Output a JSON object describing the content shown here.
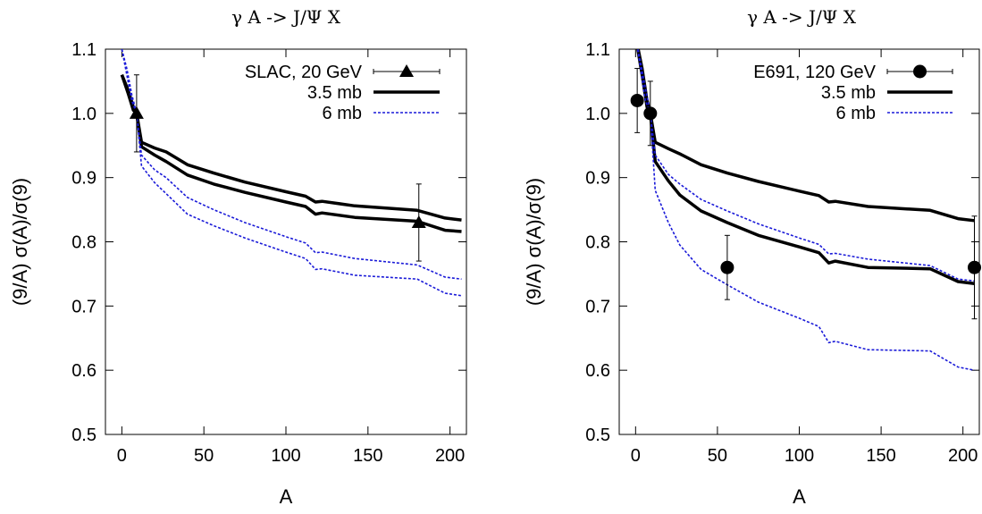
{
  "chart_data": [
    {
      "type": "line",
      "title": "γ A -> J/Ψ X",
      "xlabel": "A",
      "ylabel": "(9/A) σ(A)/σ(9)",
      "xlim": [
        -10,
        210
      ],
      "ylim": [
        0.5,
        1.1
      ],
      "xticks": [
        "0",
        "50",
        "100",
        "150",
        "200"
      ],
      "yticks": [
        "0.5",
        "0.6",
        "0.7",
        "0.8",
        "0.9",
        "1.0",
        "1.1"
      ],
      "legend_position": "top-right",
      "data_series": {
        "name": "SLAC, 20 GeV",
        "marker": "triangle",
        "points": [
          {
            "x": 9,
            "y": 1.0,
            "err_low": 0.94,
            "err_high": 1.06
          },
          {
            "x": 181,
            "y": 0.83,
            "err_low": 0.77,
            "err_high": 0.89
          }
        ]
      },
      "series": [
        {
          "name": "3.5 mb",
          "color": "#000000",
          "style": "solid",
          "curves": [
            {
              "x": [
                0,
                4,
                7,
                9,
                12,
                20,
                27,
                40,
                56,
                75,
                100,
                112,
                118,
                122,
                142,
                180,
                197,
                207
              ],
              "y": [
                1.06,
                1.035,
                1.01,
                1.0,
                0.955,
                0.946,
                0.94,
                0.92,
                0.907,
                0.893,
                0.878,
                0.871,
                0.862,
                0.863,
                0.856,
                0.849,
                0.837,
                0.834
              ]
            },
            {
              "x": [
                0,
                4,
                7,
                9,
                12,
                20,
                27,
                40,
                56,
                75,
                100,
                112,
                118,
                122,
                142,
                180,
                197,
                207
              ],
              "y": [
                1.06,
                1.03,
                1.005,
                1.0,
                0.948,
                0.935,
                0.925,
                0.904,
                0.89,
                0.877,
                0.862,
                0.855,
                0.843,
                0.845,
                0.838,
                0.832,
                0.818,
                0.816
              ]
            }
          ]
        },
        {
          "name": "6 mb",
          "color": "#1a1ad8",
          "style": "dashed",
          "curves": [
            {
              "x": [
                0,
                3,
                6,
                9,
                12,
                20,
                27,
                40,
                56,
                75,
                100,
                112,
                118,
                122,
                142,
                180,
                197,
                207
              ],
              "y": [
                1.1,
                1.07,
                1.03,
                1.0,
                0.935,
                0.912,
                0.9,
                0.869,
                0.85,
                0.83,
                0.808,
                0.798,
                0.783,
                0.784,
                0.774,
                0.764,
                0.745,
                0.742
              ]
            },
            {
              "x": [
                0,
                3,
                6,
                9,
                12,
                20,
                27,
                40,
                56,
                75,
                100,
                112,
                118,
                122,
                142,
                180,
                197,
                207
              ],
              "y": [
                1.1,
                1.06,
                1.02,
                1.0,
                0.918,
                0.892,
                0.875,
                0.843,
                0.825,
                0.806,
                0.784,
                0.774,
                0.757,
                0.758,
                0.748,
                0.742,
                0.72,
                0.716
              ]
            }
          ]
        }
      ]
    },
    {
      "type": "line",
      "title": "γ A -> J/Ψ X",
      "xlabel": "A",
      "ylabel": "(9/A) σ(A)/σ(9)",
      "xlim": [
        -10,
        210
      ],
      "ylim": [
        0.5,
        1.1
      ],
      "xticks": [
        "0",
        "50",
        "100",
        "150",
        "200"
      ],
      "yticks": [
        "0.5",
        "0.6",
        "0.7",
        "0.8",
        "0.9",
        "1.0",
        "1.1"
      ],
      "legend_position": "top-right",
      "data_series": {
        "name": "E691, 120 GeV",
        "marker": "circle",
        "points": [
          {
            "x": 1,
            "y": 1.02,
            "err_low": 0.97,
            "err_high": 1.07
          },
          {
            "x": 9,
            "y": 1.0,
            "err_low": 0.95,
            "err_high": 1.05
          },
          {
            "x": 56,
            "y": 0.76,
            "err_low": 0.71,
            "err_high": 0.81
          },
          {
            "x": 207,
            "y": 0.76,
            "err_low": 0.68,
            "err_high": 0.84
          }
        ]
      },
      "series": [
        {
          "name": "3.5 mb",
          "color": "#000000",
          "style": "solid",
          "curves": [
            {
              "x": [
                0,
                4,
                7,
                9,
                12,
                20,
                27,
                40,
                56,
                75,
                100,
                112,
                118,
                122,
                142,
                180,
                197,
                207
              ],
              "y": [
                1.12,
                1.07,
                1.02,
                1.0,
                0.955,
                0.945,
                0.937,
                0.92,
                0.907,
                0.894,
                0.879,
                0.872,
                0.862,
                0.863,
                0.855,
                0.849,
                0.836,
                0.833
              ]
            },
            {
              "x": [
                0,
                4,
                7,
                9,
                12,
                20,
                27,
                40,
                56,
                75,
                100,
                112,
                118,
                122,
                142,
                180,
                197,
                207
              ],
              "y": [
                1.12,
                1.06,
                1.01,
                1.0,
                0.925,
                0.895,
                0.873,
                0.848,
                0.83,
                0.81,
                0.792,
                0.783,
                0.767,
                0.77,
                0.76,
                0.758,
                0.738,
                0.735
              ]
            }
          ]
        },
        {
          "name": "6 mb",
          "color": "#1a1ad8",
          "style": "dashed",
          "curves": [
            {
              "x": [
                0,
                3,
                6,
                9,
                12,
                20,
                27,
                40,
                56,
                75,
                100,
                112,
                118,
                122,
                142,
                180,
                197,
                207
              ],
              "y": [
                1.12,
                1.08,
                1.04,
                1.0,
                0.935,
                0.905,
                0.89,
                0.866,
                0.848,
                0.828,
                0.806,
                0.796,
                0.781,
                0.782,
                0.773,
                0.763,
                0.742,
                0.739
              ]
            },
            {
              "x": [
                0,
                3,
                6,
                9,
                12,
                20,
                27,
                40,
                56,
                75,
                100,
                112,
                118,
                122,
                142,
                180,
                197,
                207
              ],
              "y": [
                1.12,
                1.07,
                1.02,
                1.0,
                0.88,
                0.83,
                0.795,
                0.757,
                0.733,
                0.706,
                0.681,
                0.668,
                0.643,
                0.645,
                0.632,
                0.63,
                0.605,
                0.6
              ]
            }
          ]
        }
      ]
    }
  ]
}
